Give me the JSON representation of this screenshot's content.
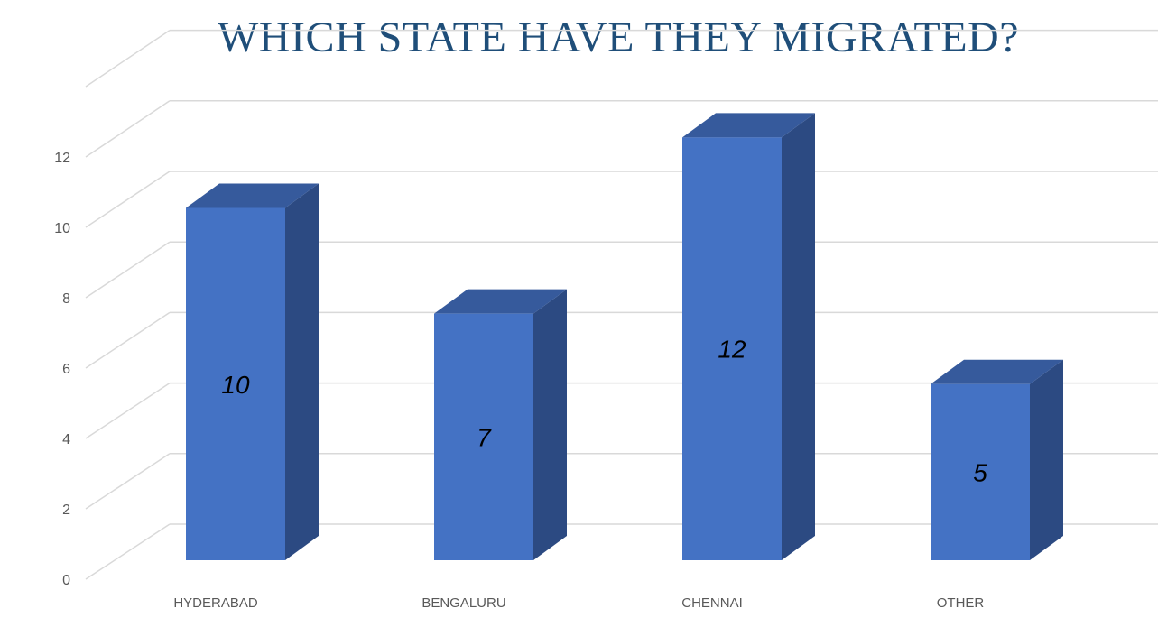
{
  "colors": {
    "title": "#1F4E79",
    "bar_front": "#4472C4",
    "bar_side": "#2C4A82",
    "bar_top": "#365A9C",
    "grid": "#D9D9D9"
  },
  "chart_data": {
    "type": "bar",
    "style": "3d-column",
    "title": "WHICH STATE HAVE THEY MIGRATED?",
    "categories": [
      "HYDERABAD",
      "BENGALURU",
      "CHENNAI",
      "OTHER"
    ],
    "values": [
      10,
      7,
      12,
      5
    ],
    "data_labels": [
      "10",
      "7",
      "12",
      "5"
    ],
    "ylim": [
      0,
      14
    ],
    "yticks": [
      0,
      2,
      4,
      6,
      8,
      10,
      12
    ],
    "grid": true,
    "legend": "none",
    "xlabel": "",
    "ylabel": ""
  }
}
